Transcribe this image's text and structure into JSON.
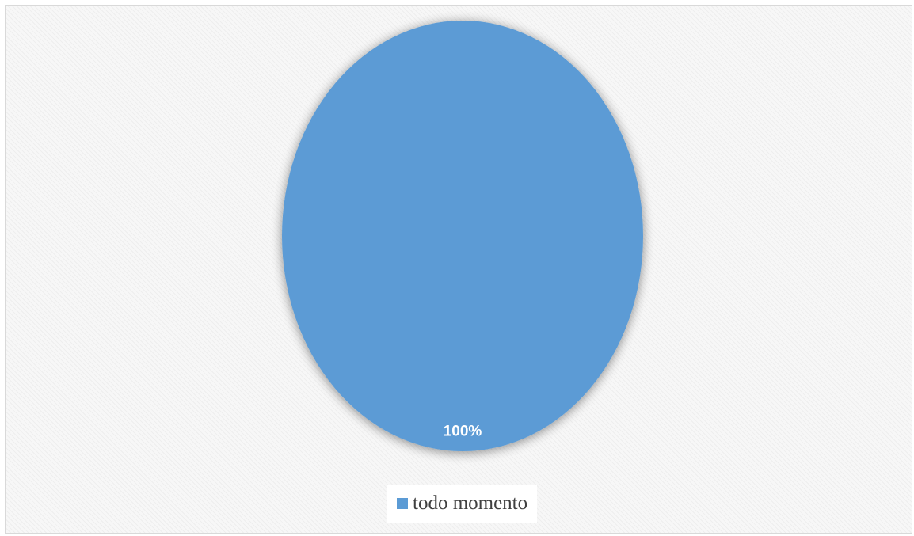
{
  "chart_data": {
    "type": "pie",
    "title": "",
    "categories": [
      "todo momento"
    ],
    "values": [
      100
    ],
    "data_labels": [
      "100%"
    ],
    "colors": [
      "#5b9bd5"
    ],
    "legend_position": "bottom",
    "background": "#f7f7f7"
  }
}
